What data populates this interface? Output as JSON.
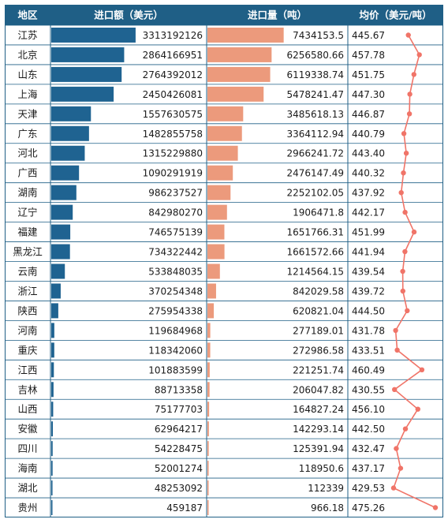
{
  "headers": {
    "region": "地区",
    "amount": "进口额（美元）",
    "volume": "进口量（吨）",
    "price": "均价（美元/吨）"
  },
  "colors": {
    "header_bg": "#1f5f86",
    "header_text": "#ffffff",
    "grid": "#1f5f86",
    "amount_bar": "#1f6391",
    "volume_bar": "#ec9a7c",
    "price_line": "#f07468"
  },
  "chart_data": {
    "type": "table",
    "columns": [
      "地区",
      "进口额（美元）",
      "进口量（吨）",
      "均价（美元/吨）"
    ],
    "rows": [
      {
        "region": "江苏",
        "amount": 3313192126,
        "amount_label": "3313192126",
        "volume": 7434153.5,
        "volume_label": "7434153.5",
        "price": 445.67,
        "price_label": "445.67"
      },
      {
        "region": "北京",
        "amount": 2864166951,
        "amount_label": "2864166951",
        "volume": 6256580.66,
        "volume_label": "6256580.66",
        "price": 457.78,
        "price_label": "457.78"
      },
      {
        "region": "山东",
        "amount": 2764392012,
        "amount_label": "2764392012",
        "volume": 6119338.74,
        "volume_label": "6119338.74",
        "price": 451.75,
        "price_label": "451.75"
      },
      {
        "region": "上海",
        "amount": 2450426081,
        "amount_label": "2450426081",
        "volume": 5478241.47,
        "volume_label": "5478241.47",
        "price": 447.3,
        "price_label": "447.30"
      },
      {
        "region": "天津",
        "amount": 1557630575,
        "amount_label": "1557630575",
        "volume": 3485618.13,
        "volume_label": "3485618.13",
        "price": 446.87,
        "price_label": "446.87"
      },
      {
        "region": "广东",
        "amount": 1482855758,
        "amount_label": "1482855758",
        "volume": 3364112.94,
        "volume_label": "3364112.94",
        "price": 440.79,
        "price_label": "440.79"
      },
      {
        "region": "河北",
        "amount": 1315229880,
        "amount_label": "1315229880",
        "volume": 2966241.72,
        "volume_label": "2966241.72",
        "price": 443.4,
        "price_label": "443.40"
      },
      {
        "region": "广西",
        "amount": 1090291919,
        "amount_label": "1090291919",
        "volume": 2476147.49,
        "volume_label": "2476147.49",
        "price": 440.32,
        "price_label": "440.32"
      },
      {
        "region": "湖南",
        "amount": 986237527,
        "amount_label": "986237527",
        "volume": 2252102.05,
        "volume_label": "2252102.05",
        "price": 437.92,
        "price_label": "437.92"
      },
      {
        "region": "辽宁",
        "amount": 842980270,
        "amount_label": "842980270",
        "volume": 1906471.8,
        "volume_label": "1906471.8",
        "price": 442.17,
        "price_label": "442.17"
      },
      {
        "region": "福建",
        "amount": 746575139,
        "amount_label": "746575139",
        "volume": 1651766.31,
        "volume_label": "1651766.31",
        "price": 451.99,
        "price_label": "451.99"
      },
      {
        "region": "黑龙江",
        "amount": 734322442,
        "amount_label": "734322442",
        "volume": 1661572.66,
        "volume_label": "1661572.66",
        "price": 441.94,
        "price_label": "441.94"
      },
      {
        "region": "云南",
        "amount": 533848035,
        "amount_label": "533848035",
        "volume": 1214564.15,
        "volume_label": "1214564.15",
        "price": 439.54,
        "price_label": "439.54"
      },
      {
        "region": "浙江",
        "amount": 370254348,
        "amount_label": "370254348",
        "volume": 842029.58,
        "volume_label": "842029.58",
        "price": 439.72,
        "price_label": "439.72"
      },
      {
        "region": "陕西",
        "amount": 275954338,
        "amount_label": "275954338",
        "volume": 620821.04,
        "volume_label": "620821.04",
        "price": 444.5,
        "price_label": "444.50"
      },
      {
        "region": "河南",
        "amount": 119684968,
        "amount_label": "119684968",
        "volume": 277189.01,
        "volume_label": "277189.01",
        "price": 431.78,
        "price_label": "431.78"
      },
      {
        "region": "重庆",
        "amount": 118342060,
        "amount_label": "118342060",
        "volume": 272986.58,
        "volume_label": "272986.58",
        "price": 433.51,
        "price_label": "433.51"
      },
      {
        "region": "江西",
        "amount": 101883599,
        "amount_label": "101883599",
        "volume": 221251.74,
        "volume_label": "221251.74",
        "price": 460.49,
        "price_label": "460.49"
      },
      {
        "region": "吉林",
        "amount": 88713358,
        "amount_label": "88713358",
        "volume": 206047.82,
        "volume_label": "206047.82",
        "price": 430.55,
        "price_label": "430.55"
      },
      {
        "region": "山西",
        "amount": 75177703,
        "amount_label": "75177703",
        "volume": 164827.24,
        "volume_label": "164827.24",
        "price": 456.1,
        "price_label": "456.10"
      },
      {
        "region": "安徽",
        "amount": 62964217,
        "amount_label": "62964217",
        "volume": 142293.14,
        "volume_label": "142293.14",
        "price": 442.5,
        "price_label": "442.50"
      },
      {
        "region": "四川",
        "amount": 54228475,
        "amount_label": "54228475",
        "volume": 125391.94,
        "volume_label": "125391.94",
        "price": 432.47,
        "price_label": "432.47"
      },
      {
        "region": "海南",
        "amount": 52001274,
        "amount_label": "52001274",
        "volume": 118950.6,
        "volume_label": "118950.6",
        "price": 437.17,
        "price_label": "437.17"
      },
      {
        "region": "湖北",
        "amount": 48253092,
        "amount_label": "48253092",
        "volume": 112339,
        "volume_label": "112339",
        "price": 429.53,
        "price_label": "429.53"
      },
      {
        "region": "贵州",
        "amount": 459187,
        "amount_label": "459187",
        "volume": 966.18,
        "volume_label": "966.18",
        "price": 475.26,
        "price_label": "475.26"
      }
    ],
    "amount_bar_max": 3313192126,
    "volume_bar_max": 7434153.5,
    "price_range": [
      429.53,
      475.26
    ]
  }
}
